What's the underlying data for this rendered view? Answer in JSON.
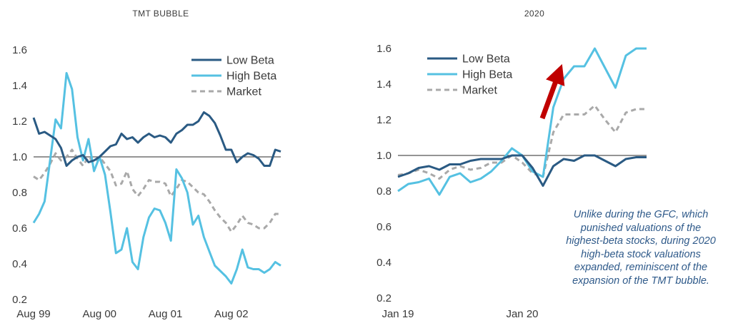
{
  "colors": {
    "low_beta": "#2a5a83",
    "high_beta": "#55c1e2",
    "market": "#a9a9a9",
    "arrow": "#c00000",
    "annotation": "#2f5a8a",
    "baseline": "#555555",
    "text": "#3a3a3a"
  },
  "annotation": "Unlike during the GFC, which\npunished valuations of the\nhighest-beta stocks, during 2020\nhigh-beta stock valuations\nexpanded, reminiscent of the\nexpansion of the TMT bubble.",
  "chart_data": [
    {
      "type": "line",
      "title": "TMT BUBBLE",
      "xlabel": "",
      "ylabel": "",
      "ylim": [
        0.2,
        1.6
      ],
      "yticks": [
        0.2,
        0.4,
        0.6,
        0.8,
        1.0,
        1.2,
        1.4,
        1.6
      ],
      "ytick_labels": [
        "0.2",
        "0.4",
        "0.6",
        "0.8",
        "1.0",
        "1.2",
        "1.4",
        "1.6"
      ],
      "x": [
        "1999-08",
        "1999-09",
        "1999-10",
        "1999-11",
        "1999-12",
        "2000-01",
        "2000-02",
        "2000-03",
        "2000-04",
        "2000-05",
        "2000-06",
        "2000-07",
        "2000-08",
        "2000-09",
        "2000-10",
        "2000-11",
        "2000-12",
        "2001-01",
        "2001-02",
        "2001-03",
        "2001-04",
        "2001-05",
        "2001-06",
        "2001-07",
        "2001-08",
        "2001-09",
        "2001-10",
        "2001-11",
        "2001-12",
        "2002-01",
        "2002-02",
        "2002-03",
        "2002-04",
        "2002-05",
        "2002-06",
        "2002-07",
        "2002-08",
        "2002-09",
        "2002-10",
        "2002-11",
        "2002-12",
        "2003-01",
        "2003-02",
        "2003-03",
        "2003-04",
        "2003-05"
      ],
      "xticks": [
        "1999-08",
        "2000-08",
        "2001-08",
        "2002-08"
      ],
      "xtick_labels": [
        "Aug 99",
        "Aug 00",
        "Aug 01",
        "Aug 02"
      ],
      "grid": false,
      "baseline": 1.0,
      "legend_position": "top-right",
      "series": [
        {
          "name": "Low Beta",
          "values": [
            1.22,
            1.13,
            1.14,
            1.12,
            1.1,
            1.05,
            0.95,
            0.98,
            1.0,
            1.01,
            0.97,
            0.98,
            1.0,
            1.03,
            1.06,
            1.07,
            1.13,
            1.1,
            1.11,
            1.08,
            1.11,
            1.13,
            1.11,
            1.12,
            1.11,
            1.08,
            1.13,
            1.15,
            1.18,
            1.18,
            1.2,
            1.25,
            1.23,
            1.19,
            1.12,
            1.04,
            1.04,
            0.97,
            1.0,
            1.02,
            1.01,
            0.99,
            0.95,
            0.95,
            1.04,
            1.03
          ]
        },
        {
          "name": "High Beta",
          "values": [
            0.63,
            0.68,
            0.75,
            0.98,
            1.21,
            1.16,
            1.47,
            1.38,
            1.11,
            0.98,
            1.1,
            0.92,
            1.0,
            0.9,
            0.69,
            0.46,
            0.48,
            0.6,
            0.41,
            0.37,
            0.55,
            0.66,
            0.71,
            0.7,
            0.63,
            0.53,
            0.93,
            0.88,
            0.8,
            0.62,
            0.67,
            0.55,
            0.47,
            0.39,
            0.36,
            0.33,
            0.29,
            0.37,
            0.48,
            0.38,
            0.37,
            0.37,
            0.35,
            0.37,
            0.41,
            0.39
          ]
        },
        {
          "name": "Market",
          "values": [
            0.89,
            0.87,
            0.91,
            0.96,
            1.02,
            0.98,
            1.0,
            1.04,
            0.99,
            0.95,
            1.0,
            0.97,
            1.0,
            0.96,
            0.92,
            0.84,
            0.85,
            0.92,
            0.82,
            0.78,
            0.82,
            0.87,
            0.86,
            0.86,
            0.85,
            0.78,
            0.82,
            0.87,
            0.86,
            0.83,
            0.8,
            0.79,
            0.75,
            0.7,
            0.66,
            0.63,
            0.58,
            0.62,
            0.67,
            0.63,
            0.62,
            0.6,
            0.6,
            0.63,
            0.68,
            0.68
          ]
        }
      ]
    },
    {
      "type": "line",
      "title": "2020",
      "xlabel": "",
      "ylabel": "",
      "ylim": [
        0.2,
        1.6
      ],
      "yticks": [
        0.2,
        0.4,
        0.6,
        0.8,
        1.0,
        1.2,
        1.4,
        1.6
      ],
      "ytick_labels": [
        "0.2",
        "0.4",
        "0.6",
        "0.8",
        "1.0",
        "1.2",
        "1.4",
        "1.6"
      ],
      "x": [
        "2019-01",
        "2019-02",
        "2019-03",
        "2019-04",
        "2019-05",
        "2019-06",
        "2019-07",
        "2019-08",
        "2019-09",
        "2019-10",
        "2019-11",
        "2019-12",
        "2020-01",
        "2020-02",
        "2020-03",
        "2020-04",
        "2020-05",
        "2020-06",
        "2020-07",
        "2020-08",
        "2020-09",
        "2020-10",
        "2020-11",
        "2020-12",
        "2021-01"
      ],
      "xticks": [
        "2019-01",
        "2020-01"
      ],
      "xtick_labels": [
        "Jan 19",
        "Jan 20"
      ],
      "grid": false,
      "baseline": 1.0,
      "legend_position": "top-left",
      "series": [
        {
          "name": "Low Beta",
          "values": [
            0.88,
            0.9,
            0.93,
            0.94,
            0.92,
            0.95,
            0.95,
            0.97,
            0.98,
            0.98,
            0.98,
            1.0,
            1.0,
            0.93,
            0.83,
            0.94,
            0.98,
            0.97,
            1.0,
            1.0,
            0.97,
            0.94,
            0.98,
            0.99,
            0.99
          ]
        },
        {
          "name": "High Beta",
          "values": [
            0.8,
            0.84,
            0.85,
            0.87,
            0.78,
            0.88,
            0.9,
            0.85,
            0.87,
            0.91,
            0.97,
            1.04,
            1.0,
            0.91,
            0.88,
            1.27,
            1.43,
            1.5,
            1.5,
            1.6,
            1.49,
            1.38,
            1.56,
            1.6,
            1.6
          ]
        },
        {
          "name": "Market",
          "values": [
            0.89,
            0.9,
            0.92,
            0.9,
            0.87,
            0.92,
            0.94,
            0.92,
            0.93,
            0.96,
            0.96,
            1.0,
            0.96,
            0.9,
            0.88,
            1.13,
            1.23,
            1.23,
            1.23,
            1.28,
            1.2,
            1.13,
            1.24,
            1.26,
            1.26
          ]
        }
      ]
    }
  ]
}
